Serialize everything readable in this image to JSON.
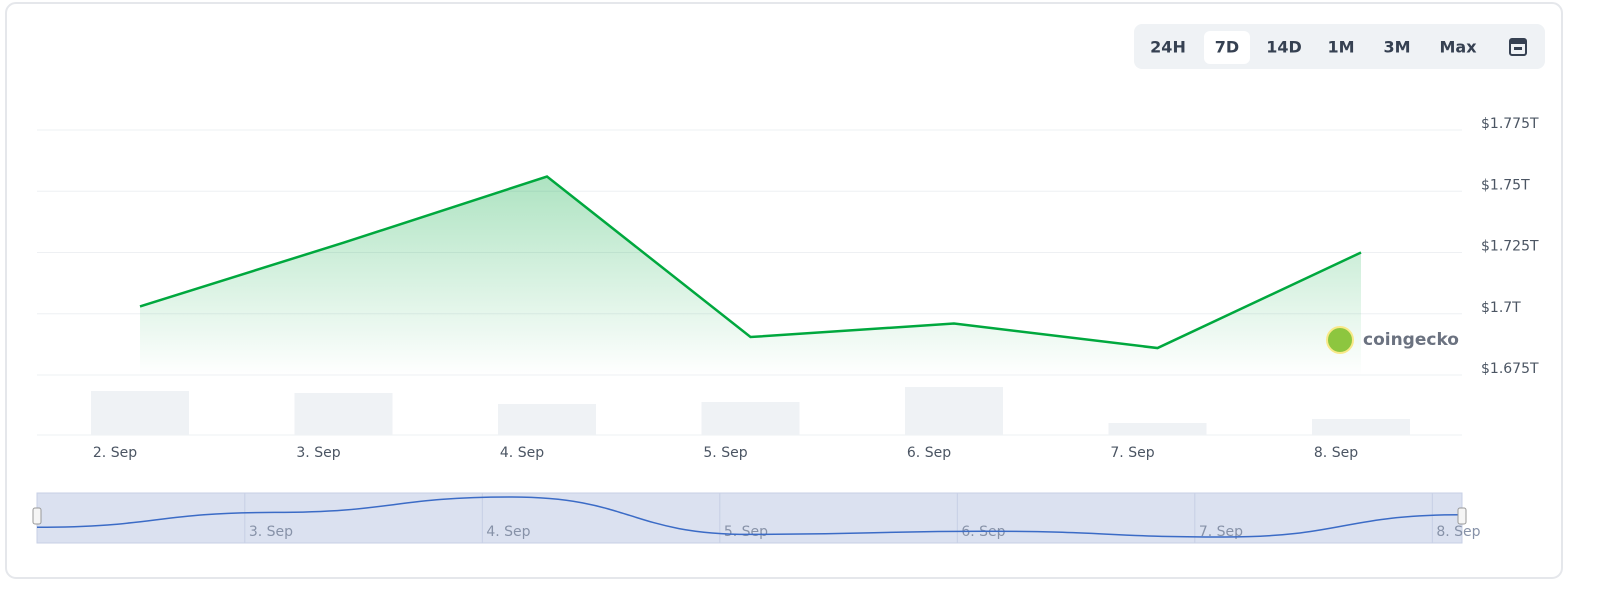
{
  "toolbar": {
    "ranges": [
      "24H",
      "7D",
      "14D",
      "1M",
      "3M",
      "Max"
    ],
    "selected": 1
  },
  "chart_data": {
    "type": "area",
    "categories": [
      "2. Sep",
      "3. Sep",
      "4. Sep",
      "5. Sep",
      "6. Sep",
      "7. Sep",
      "8. Sep"
    ],
    "values": [
      1.703,
      1.729,
      1.756,
      1.6905,
      1.696,
      1.686,
      1.725
    ],
    "color": "#00a83e",
    "volume": [
      44,
      42,
      31,
      33,
      48,
      12,
      16
    ],
    "volume_color": "#eff2f5",
    "volume_ylim": [
      0,
      100
    ],
    "ylim": [
      1.65,
      1.775
    ],
    "yticks": [
      {
        "value": 1.675,
        "label": "$1.675T"
      },
      {
        "value": 1.7,
        "label": "$1.7T"
      },
      {
        "value": 1.725,
        "label": "$1.725T"
      },
      {
        "value": 1.75,
        "label": "$1.75T"
      },
      {
        "value": 1.775,
        "label": "$1.775T"
      }
    ],
    "grid": true,
    "watermark": "coingecko"
  }
}
